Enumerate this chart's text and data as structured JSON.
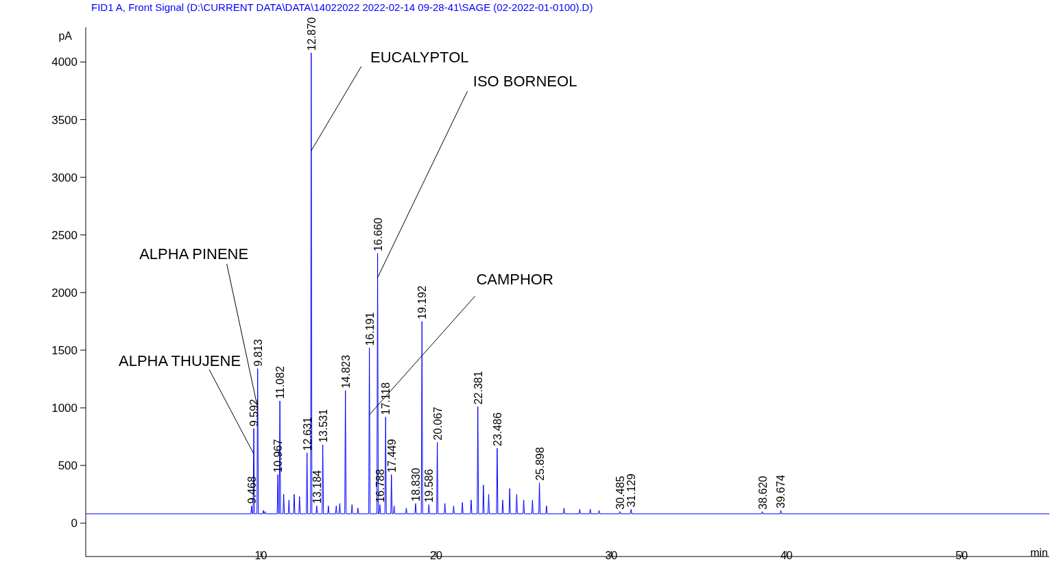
{
  "chart_data": {
    "type": "line",
    "title": "FID1 A, Front Signal (D:\\CURRENT DATA\\DATA\\14022022 2022-02-14 09-28-41\\SAGE (02-2022-01-0100).D)",
    "xlabel": "min",
    "ylabel": "pA",
    "xlim": [
      0,
      55
    ],
    "xticks": [
      10,
      20,
      30,
      40,
      50
    ],
    "ylim": [
      -290,
      4300
    ],
    "yticks": [
      0,
      500,
      1000,
      1500,
      2000,
      2500,
      3000,
      3500,
      4000
    ],
    "grid": false,
    "line_style": "solid",
    "x": [
      0,
      9.428,
      9.468,
      9.508,
      9.552,
      9.592,
      9.632,
      9.773,
      9.813,
      9.853,
      10.1,
      10.14,
      10.18,
      10.2,
      10.24,
      10.28,
      10.927,
      10.967,
      11.007,
      11.042,
      11.082,
      11.122,
      11.26,
      11.3,
      11.34,
      11.56,
      11.6,
      11.64,
      11.86,
      11.9,
      11.94,
      12.164,
      12.204,
      12.244,
      12.591,
      12.631,
      12.671,
      12.83,
      12.87,
      12.91,
      13.144,
      13.184,
      13.224,
      13.491,
      13.531,
      13.571,
      13.81,
      13.85,
      13.89,
      14.26,
      14.3,
      14.34,
      14.46,
      14.5,
      14.54,
      14.783,
      14.823,
      14.863,
      15.16,
      15.2,
      15.24,
      15.494,
      15.534,
      15.574,
      16.151,
      16.191,
      16.231,
      16.62,
      16.66,
      16.7,
      16.748,
      16.788,
      16.828,
      17.078,
      17.118,
      17.158,
      17.409,
      17.449,
      17.489,
      17.56,
      17.6,
      17.64,
      18.26,
      18.3,
      18.34,
      18.79,
      18.83,
      18.87,
      19.152,
      19.192,
      19.232,
      19.546,
      19.586,
      19.626,
      20.027,
      20.067,
      20.107,
      20.46,
      20.5,
      20.54,
      20.96,
      21,
      21.04,
      21.46,
      21.5,
      21.54,
      21.96,
      22,
      22.04,
      22.341,
      22.381,
      22.421,
      22.66,
      22.7,
      22.74,
      22.96,
      23,
      23.04,
      23.446,
      23.486,
      23.526,
      23.76,
      23.8,
      23.84,
      24.16,
      24.2,
      24.24,
      24.56,
      24.6,
      24.64,
      24.96,
      25,
      25.04,
      25.46,
      25.5,
      25.54,
      25.858,
      25.898,
      25.938,
      26.26,
      26.3,
      26.34,
      27.26,
      27.3,
      27.34,
      28.16,
      28.2,
      28.24,
      28.76,
      28.8,
      28.84,
      29.26,
      29.3,
      29.34,
      30.445,
      30.485,
      30.525,
      31.089,
      31.129,
      31.169,
      38.58,
      38.62,
      38.66,
      39.634,
      39.674,
      39.714,
      55
    ],
    "series": [
      {
        "color": "#0000ff",
        "values": [
          80,
          80,
          150,
          80,
          80,
          820,
          80,
          80,
          1340,
          80,
          80,
          110,
          80,
          80,
          100,
          80,
          80,
          420,
          80,
          80,
          1060,
          80,
          80,
          250,
          80,
          80,
          200,
          80,
          80,
          250,
          80,
          80,
          230,
          80,
          80,
          610,
          80,
          80,
          4080,
          80,
          80,
          150,
          80,
          80,
          680,
          80,
          80,
          150,
          80,
          80,
          150,
          80,
          80,
          170,
          80,
          80,
          1150,
          80,
          80,
          160,
          80,
          80,
          130,
          80,
          80,
          1520,
          80,
          80,
          2340,
          80,
          80,
          160,
          80,
          80,
          920,
          80,
          80,
          420,
          80,
          80,
          150,
          80,
          80,
          130,
          80,
          80,
          170,
          80,
          80,
          1750,
          80,
          80,
          160,
          80,
          80,
          700,
          80,
          80,
          170,
          80,
          80,
          150,
          80,
          80,
          180,
          80,
          80,
          200,
          80,
          80,
          1010,
          80,
          80,
          330,
          80,
          80,
          250,
          80,
          80,
          650,
          80,
          80,
          200,
          80,
          80,
          300,
          80,
          80,
          250,
          80,
          80,
          200,
          80,
          80,
          200,
          80,
          80,
          350,
          80,
          80,
          150,
          80,
          80,
          130,
          80,
          80,
          120,
          80,
          80,
          120,
          80,
          80,
          110,
          80,
          80,
          100,
          80,
          80,
          120,
          80,
          80,
          100,
          80,
          80,
          110,
          80,
          80
        ]
      }
    ],
    "annotations": [
      {
        "text": "ALPHA THUJENE",
        "x": 9.592,
        "y": 600
      },
      {
        "text": "ALPHA PINENE",
        "x": 9.813,
        "y": 1000
      },
      {
        "text": "EUCALYPTOL",
        "x": 12.87,
        "y": 3230
      },
      {
        "text": "ISO BORNEOL",
        "x": 16.66,
        "y": 2130
      },
      {
        "text": "CAMPHOR",
        "x": 16.191,
        "y": 940
      },
      {
        "text": "9.468",
        "x": 9.468,
        "y": 150
      },
      {
        "text": "9.592",
        "x": 9.592,
        "y": 820
      },
      {
        "text": "9.813",
        "x": 9.813,
        "y": 1340
      },
      {
        "text": "10.967",
        "x": 10.967,
        "y": 420
      },
      {
        "text": "11.082",
        "x": 11.082,
        "y": 1060
      },
      {
        "text": "12.631",
        "x": 12.631,
        "y": 610
      },
      {
        "text": "12.870",
        "x": 12.87,
        "y": 4080
      },
      {
        "text": "13.184",
        "x": 13.184,
        "y": 150
      },
      {
        "text": "13.531",
        "x": 13.531,
        "y": 680
      },
      {
        "text": "14.823",
        "x": 14.823,
        "y": 1150
      },
      {
        "text": "16.191",
        "x": 16.191,
        "y": 1520
      },
      {
        "text": "16.660",
        "x": 16.66,
        "y": 2340
      },
      {
        "text": "16.788",
        "x": 16.788,
        "y": 160
      },
      {
        "text": "17.118",
        "x": 17.118,
        "y": 920
      },
      {
        "text": "17.449",
        "x": 17.449,
        "y": 420
      },
      {
        "text": "18.830",
        "x": 18.83,
        "y": 170
      },
      {
        "text": "19.192",
        "x": 19.192,
        "y": 1750
      },
      {
        "text": "19.586",
        "x": 19.586,
        "y": 160
      },
      {
        "text": "20.067",
        "x": 20.067,
        "y": 700
      },
      {
        "text": "22.381",
        "x": 22.381,
        "y": 1010
      },
      {
        "text": "23.486",
        "x": 23.486,
        "y": 650
      },
      {
        "text": "25.898",
        "x": 25.898,
        "y": 350
      },
      {
        "text": "30.485",
        "x": 30.485,
        "y": 100
      },
      {
        "text": "31.129",
        "x": 31.129,
        "y": 120
      },
      {
        "text": "38.620",
        "x": 38.62,
        "y": 100
      },
      {
        "text": "39.674",
        "x": 39.674,
        "y": 110
      }
    ]
  }
}
